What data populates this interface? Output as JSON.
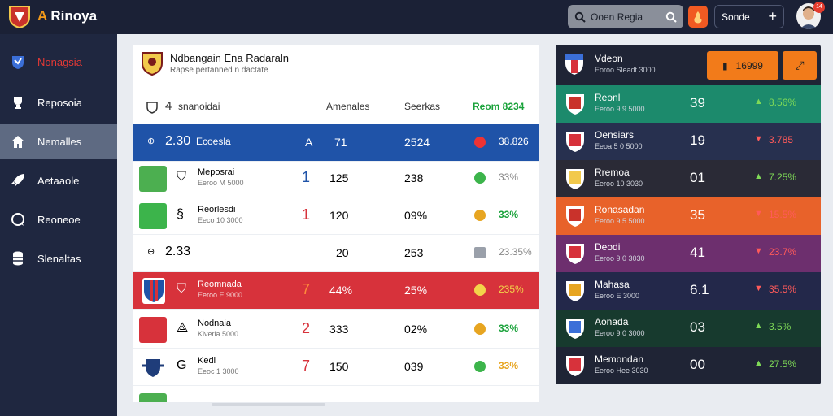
{
  "app": {
    "name_prefix": "A",
    "name_rest": "Rinoya"
  },
  "header": {
    "search_text": "Ooen Regia",
    "select_label": "Sonde",
    "notification_count": "14"
  },
  "sidebar": {
    "items": [
      {
        "label": "Nonagsia",
        "icon": "globe-shield-icon"
      },
      {
        "label": "Reposoia",
        "icon": "trophy-icon"
      },
      {
        "label": "Nemalles",
        "icon": "home-icon"
      },
      {
        "label": "Aetaaole",
        "icon": "rocket-icon"
      },
      {
        "label": "Reoneoe",
        "icon": "chat-icon"
      },
      {
        "label": "Slenaltas",
        "icon": "database-icon"
      }
    ]
  },
  "main": {
    "title": "Ndbangain Ena Radaraln",
    "subtitle": "Rapse pertanned n dactate",
    "summary_value": "4",
    "summary_label": "snanoidai",
    "columns": {
      "c1": "Amenales",
      "c2": "Seerkas",
      "c3": "Reom 8234"
    },
    "rows": [
      {
        "rank": "2.30",
        "name": "Ecoesla",
        "sub": "",
        "sym": "A",
        "a": "71",
        "b": "2524",
        "pct": "38.826",
        "style": "blue"
      },
      {
        "rank": "",
        "name": "Meposrai",
        "sub": "Eeroo M 5000",
        "sym": "1",
        "a": "125",
        "b": "238",
        "pct": "33%",
        "style": "plain"
      },
      {
        "rank": "",
        "name": "Reorlesdi",
        "sub": "Eeco 10 3000",
        "sym": "1",
        "a": "120",
        "b": "09%",
        "pct": "33%",
        "style": "plain"
      },
      {
        "rank": "2.33",
        "name": "",
        "sub": "",
        "sym": "",
        "a": "20",
        "b": "253",
        "pct": "23.35%",
        "style": "plain"
      },
      {
        "rank": "",
        "name": "Reomnada",
        "sub": "Eeroo E 9000",
        "sym": "7",
        "a": "44%",
        "b": "25%",
        "pct": "235%",
        "style": "red"
      },
      {
        "rank": "",
        "name": "Nodnaia",
        "sub": "Kiveria 5000",
        "sym": "2",
        "a": "333",
        "b": "02%",
        "pct": "33%",
        "style": "plain"
      },
      {
        "rank": "",
        "name": "Kedi",
        "sub": "Eeoc 1 3000",
        "sym": "7",
        "a": "150",
        "b": "039",
        "pct": "33%",
        "style": "plain"
      }
    ]
  },
  "panel": {
    "title": "Vdeon",
    "subtitle": "Eoroo Sleadt 3000",
    "cta_label": "16999",
    "rows": [
      {
        "name": "Reonl",
        "sub": "Eeroo 9 9 5000",
        "score": "39",
        "change": "8.56%",
        "up": true,
        "color": "#1c8a6c"
      },
      {
        "name": "Oensiars",
        "sub": "Eeoa 5 0 5000",
        "score": "19",
        "change": "3.785",
        "up": false,
        "color": "#27304f"
      },
      {
        "name": "Rremoa",
        "sub": "Eeroo 10 3030",
        "score": "01",
        "change": "7.25%",
        "up": true,
        "color": "#2a2a36"
      },
      {
        "name": "Ronasadan",
        "sub": "Eeroo 9 5 5000",
        "score": "35",
        "change": "15.5%",
        "up": false,
        "color": "#e8622a"
      },
      {
        "name": "Deodi",
        "sub": "Eeroo 9 0 3030",
        "score": "41",
        "change": "23.7%",
        "up": false,
        "color": "#6d2f6e"
      },
      {
        "name": "Mahasa",
        "sub": "Eeroo E 3000",
        "score": "6.1",
        "change": "35.5%",
        "up": false,
        "color": "#23284a"
      },
      {
        "name": "Aonada",
        "sub": "Eeroo 9 0 3000",
        "score": "03",
        "change": "3.5%",
        "up": true,
        "color": "#173a2e"
      },
      {
        "name": "Memondan",
        "sub": "Eeroo Hee 3030",
        "score": "00",
        "change": "27.5%",
        "up": true,
        "color": "#1f2435"
      }
    ]
  }
}
